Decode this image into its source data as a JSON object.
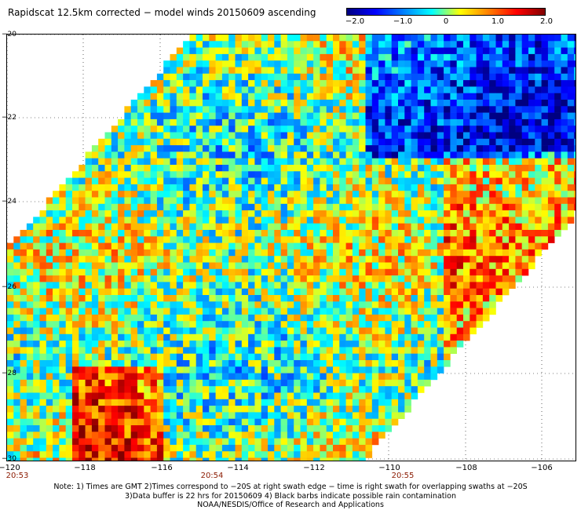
{
  "title": "Rapidscat 12.5km corrected − model winds 20150609 ascending",
  "colorbar": {
    "ticks": [
      "−2.0",
      "−1.0",
      "0",
      "1.0",
      "2.0"
    ],
    "colors": [
      "#000080",
      "#0000ff",
      "#0080ff",
      "#00ffff",
      "#ffff00",
      "#ff8000",
      "#ff0000",
      "#800000"
    ]
  },
  "axes": {
    "lat_labels": [
      "−20",
      "−22",
      "−24",
      "−26",
      "−28",
      "−30"
    ],
    "lon_labels": [
      "−120",
      "−118",
      "−116",
      "−114",
      "−112",
      "−110",
      "−108",
      "−106"
    ],
    "time_labels": [
      "20:53",
      "20:54",
      "20:55"
    ]
  },
  "footer": {
    "line1": "Note: 1) Times are GMT 2)Times correspond to −20S at right swath edge − time is right swath for overlapping swaths at −20S",
    "line2": "3)Data buffer is 22 hrs for 20150609 4) Black barbs indicate possible rain contamination",
    "line3": "NOAA/NESDIS/Office of Research and Applications"
  }
}
